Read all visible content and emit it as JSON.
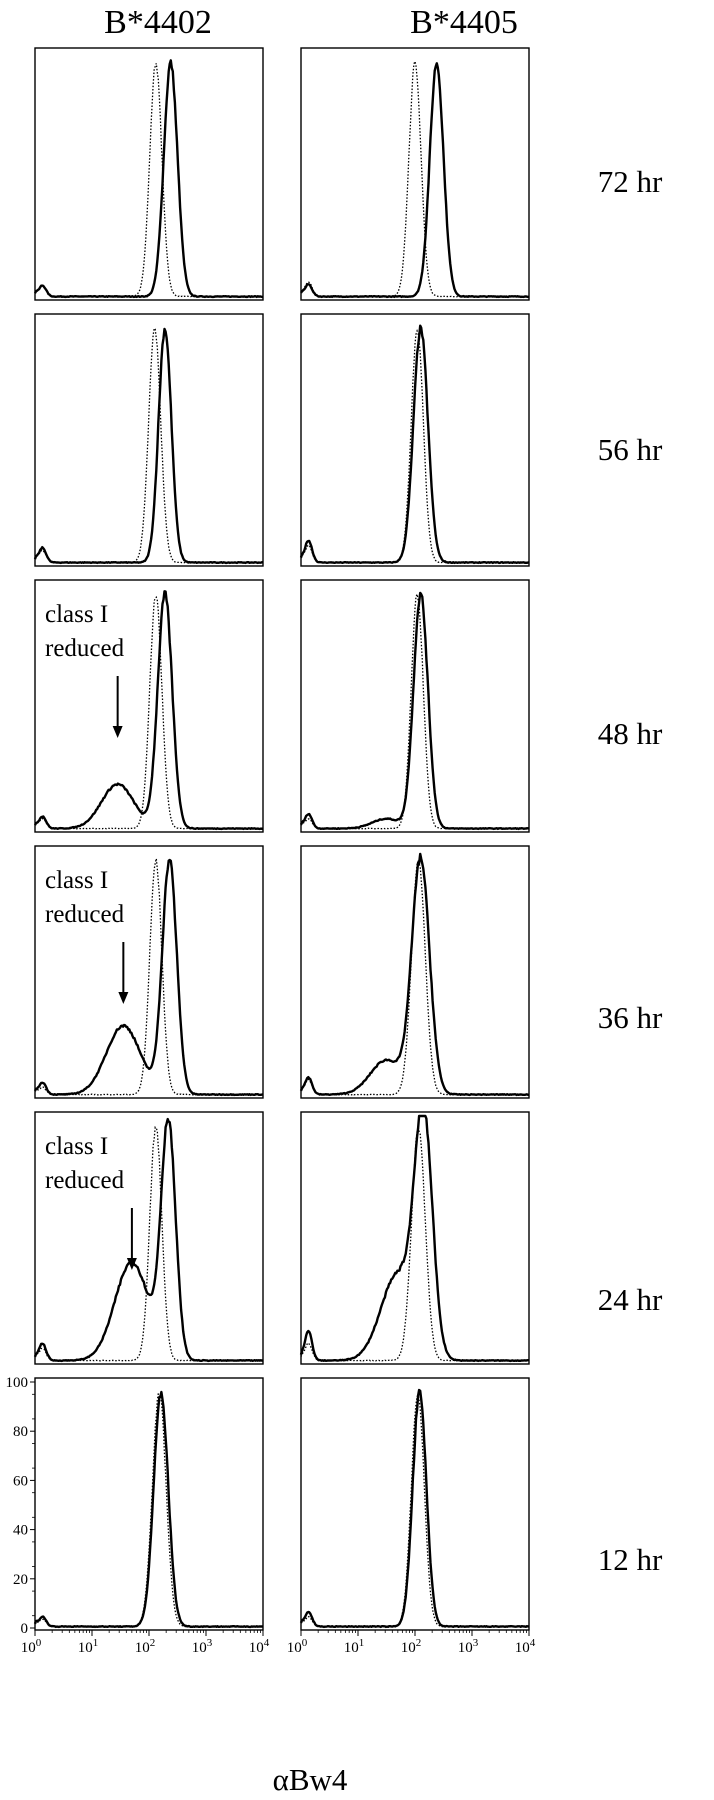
{
  "columns": [
    "B*4402",
    "B*4405"
  ],
  "times": [
    "72 hr",
    "56 hr",
    "48 hr",
    "36 hr",
    "24 hr",
    "12 hr"
  ],
  "annotation": [
    "class I",
    "reduced"
  ],
  "x_label": "αBw4",
  "x_ticks": [
    {
      "base": "10",
      "exp": "0"
    },
    {
      "base": "10",
      "exp": "1"
    },
    {
      "base": "10",
      "exp": "2"
    },
    {
      "base": "10",
      "exp": "3"
    },
    {
      "base": "10",
      "exp": "4"
    }
  ],
  "y_ticks": [
    "0",
    "20",
    "40",
    "60",
    "80",
    "100"
  ],
  "chart_data": {
    "type": "line",
    "layout": "grid",
    "description_of_series_styles": {
      "solid": "thick solid line",
      "dotted": "thin dotted line"
    },
    "xlim_log10": [
      0,
      4
    ],
    "xscale": "log",
    "ylim": [
      0,
      100
    ],
    "columns": [
      "B*4402",
      "B*4405"
    ],
    "rows": [
      "72 hr",
      "56 hr",
      "48 hr",
      "36 hr",
      "24 hr",
      "12 hr"
    ],
    "panels": [
      {
        "column": "B*4402",
        "row": "72 hr",
        "annotated": false,
        "solid": {
          "peak_log10": 2.38,
          "width": 0.17,
          "debris_height": 4.5,
          "shoulder": null
        },
        "dotted": {
          "peak_log10": 2.12,
          "width": 0.15,
          "debris_height": 4.5
        }
      },
      {
        "column": "B*4405",
        "row": "72 hr",
        "annotated": false,
        "solid": {
          "peak_log10": 2.38,
          "width": 0.17,
          "debris_height": 5,
          "shoulder": null
        },
        "dotted": {
          "peak_log10": 2.0,
          "width": 0.15,
          "debris_height": 6
        }
      },
      {
        "column": "B*4402",
        "row": "56 hr",
        "annotated": false,
        "solid": {
          "peak_log10": 2.28,
          "width": 0.16,
          "debris_height": 6,
          "shoulder": null
        },
        "dotted": {
          "peak_log10": 2.1,
          "width": 0.15,
          "debris_height": 5
        }
      },
      {
        "column": "B*4405",
        "row": "56 hr",
        "annotated": false,
        "solid": {
          "peak_log10": 2.1,
          "width": 0.18,
          "debris_height": 9,
          "shoulder": null
        },
        "dotted": {
          "peak_log10": 2.04,
          "width": 0.15,
          "debris_height": 7
        }
      },
      {
        "column": "B*4402",
        "row": "48 hr",
        "annotated": true,
        "arrow_x_log10": 1.45,
        "solid": {
          "peak_log10": 2.28,
          "width": 0.18,
          "debris_height": 5,
          "shoulder": {
            "pos": 1.45,
            "height": 18,
            "width": 0.4
          }
        },
        "dotted": {
          "peak_log10": 2.12,
          "width": 0.15,
          "debris_height": 4
        }
      },
      {
        "column": "B*4405",
        "row": "48 hr",
        "annotated": false,
        "solid": {
          "peak_log10": 2.1,
          "width": 0.18,
          "debris_height": 6,
          "shoulder": {
            "pos": 1.5,
            "height": 4,
            "width": 0.35
          }
        },
        "dotted": {
          "peak_log10": 2.04,
          "width": 0.15,
          "debris_height": 4
        }
      },
      {
        "column": "B*4402",
        "row": "36 hr",
        "annotated": true,
        "arrow_x_log10": 1.55,
        "solid": {
          "peak_log10": 2.36,
          "width": 0.18,
          "debris_height": 5,
          "shoulder": {
            "pos": 1.55,
            "height": 28,
            "width": 0.42
          }
        },
        "dotted": {
          "peak_log10": 2.12,
          "width": 0.15,
          "debris_height": 3
        }
      },
      {
        "column": "B*4405",
        "row": "36 hr",
        "annotated": false,
        "solid": {
          "peak_log10": 2.1,
          "width": 0.22,
          "debris_height": 7,
          "shoulder": {
            "pos": 1.5,
            "height": 14,
            "width": 0.4
          }
        },
        "dotted": {
          "peak_log10": 2.06,
          "width": 0.17,
          "debris_height": 6
        }
      },
      {
        "column": "B*4402",
        "row": "24 hr",
        "annotated": true,
        "arrow_x_log10": 1.7,
        "solid": {
          "peak_log10": 2.34,
          "width": 0.18,
          "debris_height": 7,
          "shoulder": {
            "pos": 1.7,
            "height": 40,
            "width": 0.42
          }
        },
        "dotted": {
          "peak_log10": 2.12,
          "width": 0.15,
          "debris_height": 5
        }
      },
      {
        "column": "B*4405",
        "row": "24 hr",
        "annotated": false,
        "solid": {
          "peak_log10": 2.15,
          "width": 0.22,
          "debris_height": 12,
          "shoulder": {
            "pos": 1.7,
            "height": 35,
            "width": 0.42
          }
        },
        "dotted": {
          "peak_log10": 2.06,
          "width": 0.17,
          "debris_height": 7
        }
      },
      {
        "column": "B*4402",
        "row": "12 hr",
        "annotated": false,
        "solid": {
          "peak_log10": 2.21,
          "width": 0.18,
          "debris_height": 4,
          "shoulder": null
        },
        "dotted": {
          "peak_log10": 2.18,
          "width": 0.17,
          "debris_height": 3
        }
      },
      {
        "column": "B*4405",
        "row": "12 hr",
        "annotated": false,
        "solid": {
          "peak_log10": 2.08,
          "width": 0.17,
          "debris_height": 6,
          "shoulder": null
        },
        "dotted": {
          "peak_log10": 2.05,
          "width": 0.16,
          "debris_height": 4
        }
      }
    ]
  }
}
